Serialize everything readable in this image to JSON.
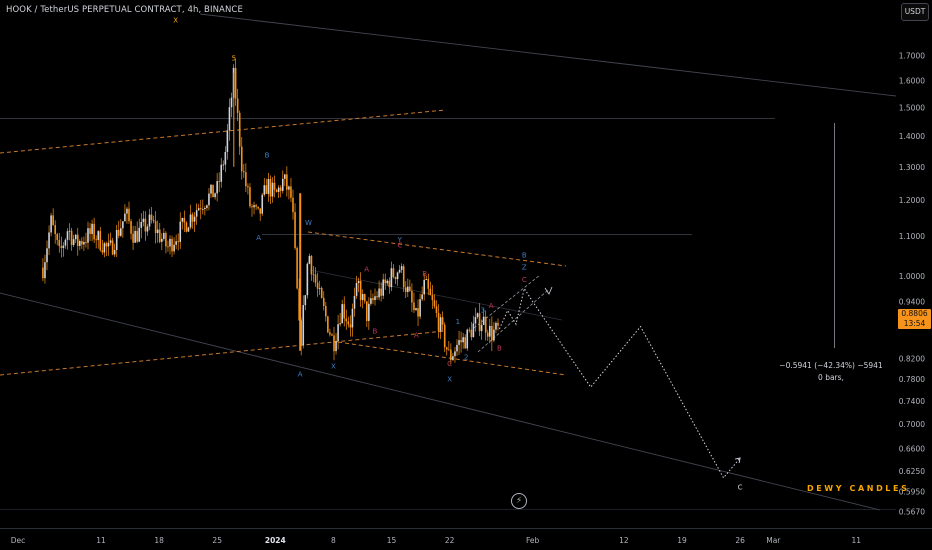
{
  "header": {
    "title": "HOOK / TetherUS PERPETUAL CONTRACT, 4h, BINANCE",
    "currency_button": "USDT"
  },
  "watermark": {
    "brand": "DEWY CANDLES"
  },
  "measure_tool": {
    "line1": "−0.5941 (−42.34%) −5941",
    "line2": "0 bars,"
  },
  "last_price": {
    "price": "0.8806",
    "countdown": "13:54"
  },
  "icons": {
    "bottom_center": "flash-icon"
  },
  "colors": {
    "background": "#000000",
    "candle": "#f7931a",
    "wick_alt": "#d1d4dc",
    "channel_dash": "#c8782a",
    "blue_label": "#3d7fc9",
    "red_label": "#c2375c",
    "accent": "#f7a600"
  },
  "chart_data": {
    "type": "candlestick",
    "title": "HOOK / TetherUS PERPETUAL CONTRACT, 4h, BINANCE",
    "y_scale": "log",
    "ylim": [
      0.545,
      1.86
    ],
    "y_ticks": [
      "1.7000",
      "1.6000",
      "1.5000",
      "1.4000",
      "1.3000",
      "1.2000",
      "1.1000",
      "1.0000",
      "0.9400",
      "0.8806",
      "0.8200",
      "0.7800",
      "0.7400",
      "0.7000",
      "0.6600",
      "0.6250",
      "0.5950",
      "0.5670"
    ],
    "x_ticks": [
      "Dec",
      "11",
      "18",
      "25",
      "2024",
      "8",
      "15",
      "22",
      "Feb",
      "12",
      "19",
      "26",
      "Mar",
      "11"
    ],
    "price_path": [
      [
        "2023-12-04",
        1.02
      ],
      [
        "2023-12-05",
        1.14
      ],
      [
        "2023-12-06",
        1.05
      ],
      [
        "2023-12-07",
        1.12
      ],
      [
        "2023-12-08",
        1.08
      ],
      [
        "2023-12-10",
        1.11
      ],
      [
        "2023-12-12",
        1.06
      ],
      [
        "2023-12-14",
        1.16
      ],
      [
        "2023-12-15",
        1.1
      ],
      [
        "2023-12-17",
        1.14
      ],
      [
        "2023-12-19",
        1.07
      ],
      [
        "2023-12-21",
        1.13
      ],
      [
        "2023-12-23",
        1.19
      ],
      [
        "2023-12-25",
        1.23
      ],
      [
        "2023-12-26",
        1.35
      ],
      [
        "2023-12-27",
        1.62
      ],
      [
        "2023-12-28",
        1.3
      ],
      [
        "2023-12-29",
        1.18
      ],
      [
        "2023-12-30",
        1.15
      ],
      [
        "2023-12-31",
        1.25
      ],
      [
        "2024-01-01",
        1.21
      ],
      [
        "2024-01-02",
        1.26
      ],
      [
        "2024-01-03",
        1.2
      ],
      [
        "2024-01-04",
        0.84
      ],
      [
        "2024-01-05",
        1.06
      ],
      [
        "2024-01-06",
        0.97
      ],
      [
        "2024-01-07",
        0.91
      ],
      [
        "2024-01-08",
        0.85
      ],
      [
        "2024-01-09",
        0.93
      ],
      [
        "2024-01-10",
        0.89
      ],
      [
        "2024-01-11",
        0.98
      ],
      [
        "2024-01-12",
        0.91
      ],
      [
        "2024-01-13",
        0.95
      ],
      [
        "2024-01-14",
        0.97
      ],
      [
        "2024-01-15",
        1.0
      ],
      [
        "2024-01-16",
        1.02
      ],
      [
        "2024-01-17",
        0.96
      ],
      [
        "2024-01-18",
        0.9
      ],
      [
        "2024-01-19",
        0.98
      ],
      [
        "2024-01-20",
        0.93
      ],
      [
        "2024-01-21",
        0.88
      ],
      [
        "2024-01-22",
        0.82
      ],
      [
        "2024-01-23",
        0.85
      ],
      [
        "2024-01-24",
        0.86
      ],
      [
        "2024-01-25",
        0.89
      ],
      [
        "2024-01-26",
        0.9
      ],
      [
        "2024-01-27",
        0.87
      ],
      [
        "2024-01-28",
        0.88
      ]
    ],
    "projection_path": [
      [
        "2024-01-28",
        0.88
      ],
      [
        "2024-01-29",
        0.92
      ],
      [
        "2024-01-30",
        0.89
      ],
      [
        "2024-01-31",
        0.97
      ],
      [
        "2024-02-01",
        0.94
      ],
      [
        "2024-02-08",
        0.765
      ],
      [
        "2024-02-14",
        0.885
      ],
      [
        "2024-02-24",
        0.615
      ],
      [
        "2024-02-26",
        0.645
      ]
    ],
    "wave_labels": [
      {
        "text": "X",
        "date": "2023-12-20",
        "price": 1.84,
        "color": "#f7a600"
      },
      {
        "text": "5",
        "date": "2023-12-27",
        "price": 1.68,
        "color": "#f7a600"
      },
      {
        "text": "B",
        "date": "2023-12-31",
        "price": 1.33,
        "color": "#3d7fc9"
      },
      {
        "text": "A",
        "date": "2023-12-30",
        "price": 1.09,
        "color": "#3d7fc9"
      },
      {
        "text": "W",
        "date": "2024-01-05",
        "price": 1.13,
        "color": "#3d7fc9"
      },
      {
        "text": "A",
        "date": "2024-01-12",
        "price": 1.01,
        "color": "#c2375c"
      },
      {
        "text": "C",
        "date": "2024-01-16",
        "price": 1.07,
        "color": "#c2375c"
      },
      {
        "text": "Y",
        "date": "2024-01-16",
        "price": 1.085,
        "color": "#3d7fc9"
      },
      {
        "text": "B",
        "date": "2024-01-19",
        "price": 1.0,
        "color": "#c2375c"
      },
      {
        "text": "B",
        "date": "2024-01-13",
        "price": 0.87,
        "color": "#c2375c"
      },
      {
        "text": "A",
        "date": "2024-01-18",
        "price": 0.862,
        "color": "#c2375c"
      },
      {
        "text": "A",
        "date": "2024-01-04",
        "price": 0.785,
        "color": "#3d7fc9"
      },
      {
        "text": "X",
        "date": "2024-01-08",
        "price": 0.8,
        "color": "#3d7fc9"
      },
      {
        "text": "C",
        "date": "2024-01-22",
        "price": 0.805,
        "color": "#c2375c"
      },
      {
        "text": "X",
        "date": "2024-01-22",
        "price": 0.775,
        "color": "#3d7fc9"
      },
      {
        "text": "1",
        "date": "2024-01-23",
        "price": 0.89,
        "color": "#3d7fc9"
      },
      {
        "text": "2",
        "date": "2024-01-24",
        "price": 0.818,
        "color": "#3d7fc9"
      },
      {
        "text": "3",
        "date": "2024-01-26",
        "price": 0.915,
        "color": "#3d7fc9"
      },
      {
        "text": "A",
        "date": "2024-01-27",
        "price": 0.925,
        "color": "#c2375c"
      },
      {
        "text": "B",
        "date": "2024-01-28",
        "price": 0.835,
        "color": "#c2375c"
      },
      {
        "text": "C",
        "date": "2024-01-31",
        "price": 0.985,
        "color": "#c2375c"
      },
      {
        "text": "Z",
        "date": "2024-01-31",
        "price": 1.015,
        "color": "#3d7fc9"
      },
      {
        "text": "B",
        "date": "2024-01-31",
        "price": 1.045,
        "color": "#3d7fc9"
      },
      {
        "text": "C",
        "date": "2024-02-26",
        "price": 0.598,
        "color": "#d1d4dc"
      }
    ]
  }
}
